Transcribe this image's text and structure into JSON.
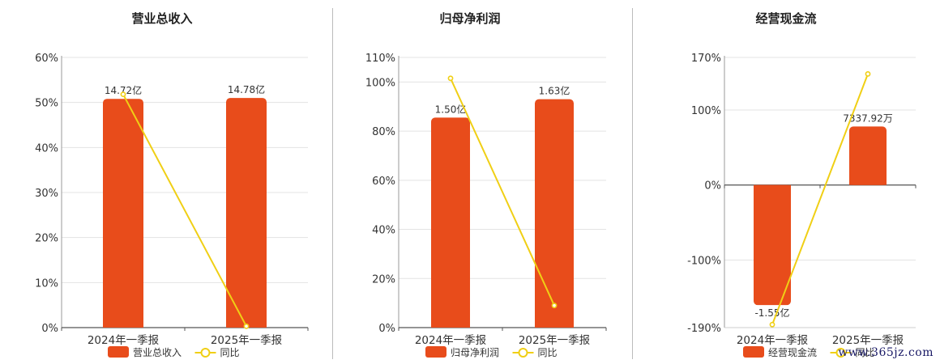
{
  "watermark": "www.365jz.com",
  "colors": {
    "bar": "#E84C1B",
    "line": "#F0CF15",
    "grid": "#E3E3E3",
    "axis": "#555555"
  },
  "chart_data": [
    {
      "type": "bar",
      "title": "营业总收入",
      "categories": [
        "2024年一季报",
        "2025年一季报"
      ],
      "series": [
        {
          "name": "营业总收入",
          "kind": "bar",
          "values": [
            50.8,
            51.0
          ],
          "labels": [
            "14.72亿",
            "14.78亿"
          ]
        },
        {
          "name": "同比",
          "kind": "line",
          "values": [
            51.8,
            0.3
          ]
        }
      ],
      "yticks": [
        "0%",
        "10%",
        "20%",
        "30%",
        "40%",
        "50%",
        "60%"
      ],
      "ylim": [
        0,
        60
      ],
      "grid": true,
      "legend": "bottom"
    },
    {
      "type": "bar",
      "title": "归母净利润",
      "categories": [
        "2024年一季报",
        "2025年一季报"
      ],
      "series": [
        {
          "name": "归母净利润",
          "kind": "bar",
          "values": [
            85.5,
            93.0
          ],
          "labels": [
            "1.50亿",
            "1.63亿"
          ]
        },
        {
          "name": "同比",
          "kind": "line",
          "values": [
            101.5,
            9.0
          ]
        }
      ],
      "yticks": [
        "0%",
        "20%",
        "40%",
        "60%",
        "80%",
        "100%",
        "110%"
      ],
      "ylim": [
        0,
        110
      ],
      "grid": true,
      "legend": "bottom"
    },
    {
      "type": "bar",
      "title": "经营现金流",
      "categories": [
        "2024年一季报",
        "2025年一季报"
      ],
      "series": [
        {
          "name": "经营现金流",
          "kind": "bar",
          "values": [
            -160,
            78
          ],
          "labels": [
            "-1.55亿",
            "7337.92万"
          ]
        },
        {
          "name": "同比",
          "kind": "line",
          "values": [
            -186,
            148
          ]
        }
      ],
      "yticks": [
        "-190%",
        "-100%",
        "0%",
        "100%",
        "170%"
      ],
      "ylim": [
        -190,
        170
      ],
      "grid": true,
      "legend": "bottom"
    }
  ]
}
